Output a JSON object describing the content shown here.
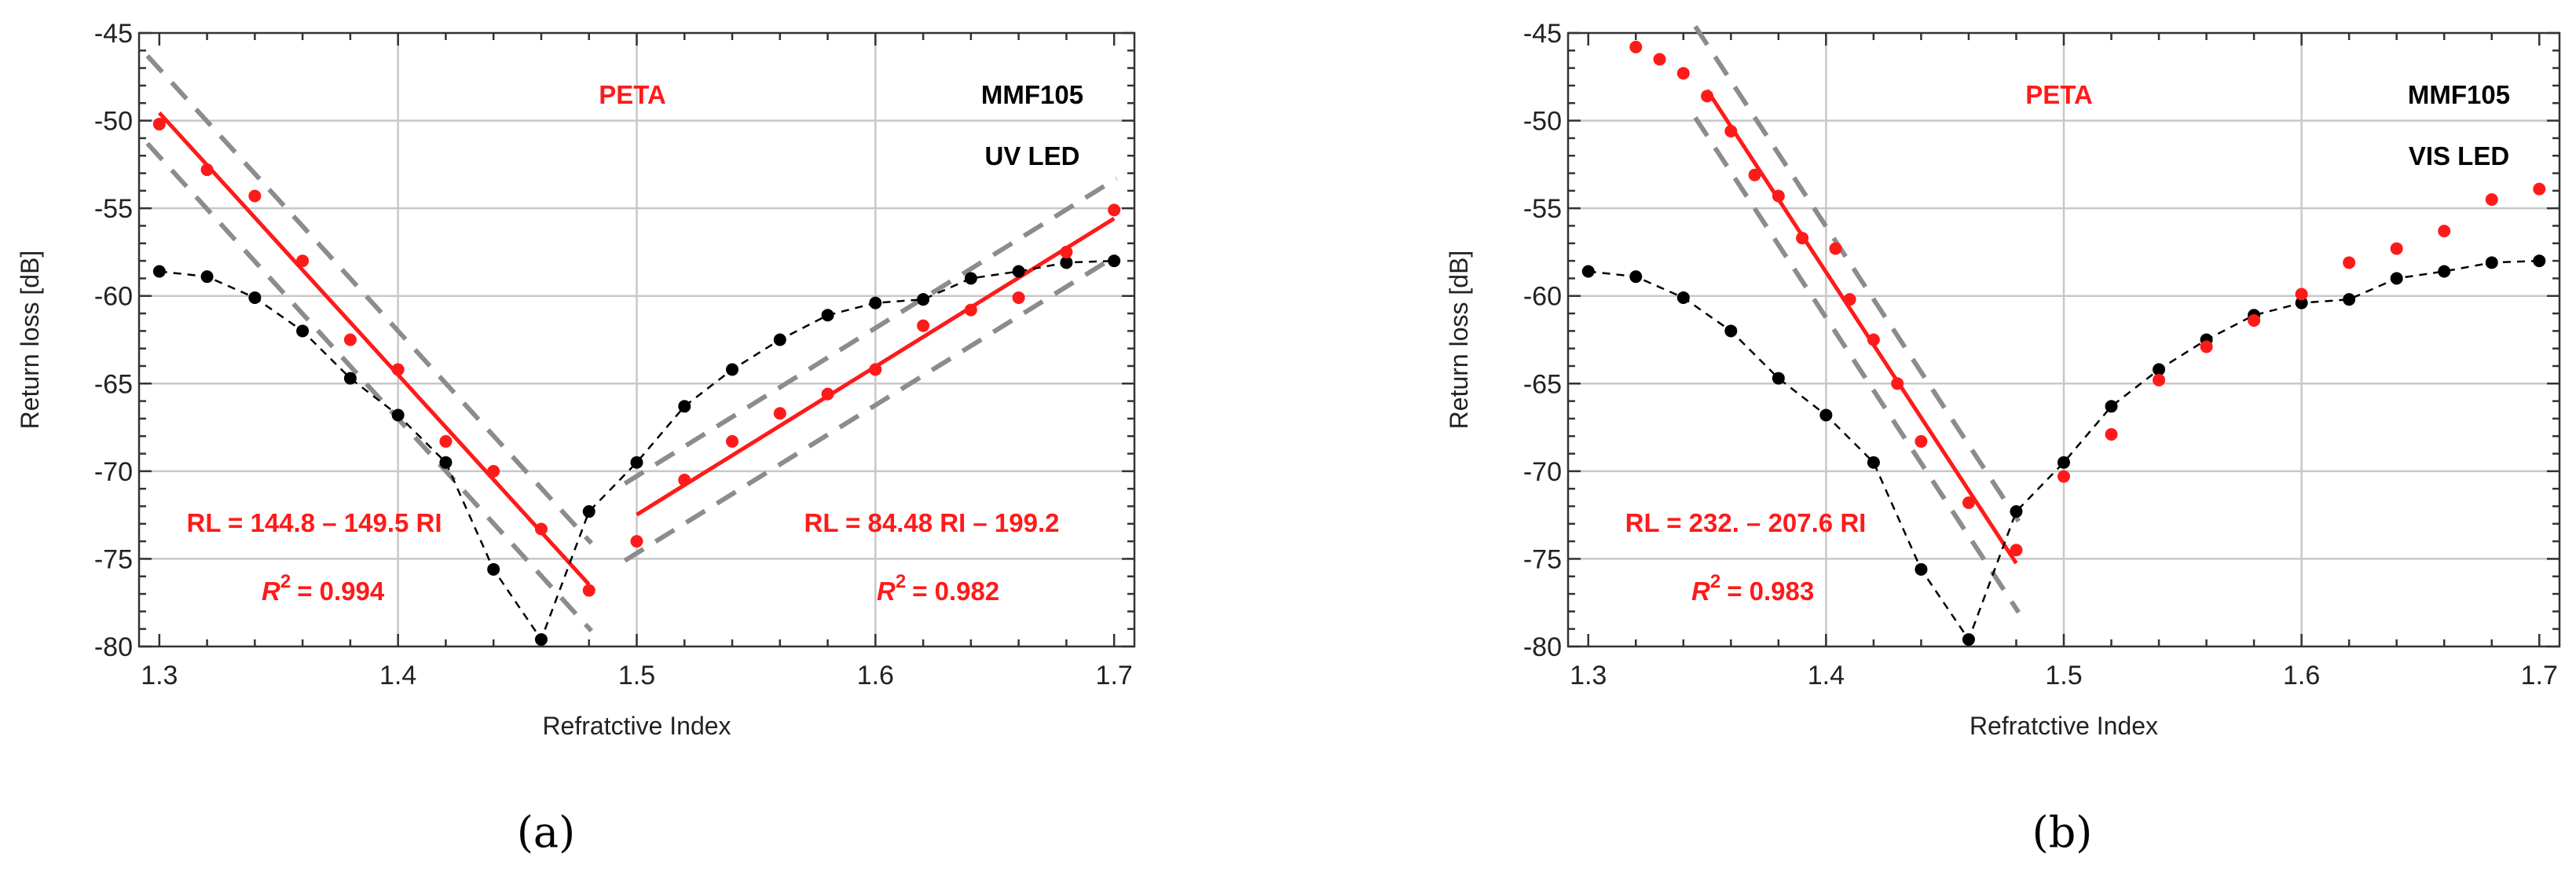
{
  "colors": {
    "red": "#ff1a1a",
    "black": "#000000",
    "band": "#8c8c8c",
    "grid": "#c8c8c8"
  },
  "chart_data": [
    {
      "type": "scatter",
      "caption": "(a)",
      "xlabel": "Refratctive Index",
      "ylabel": "Return loss [dB]",
      "xlim": [
        1.2915,
        1.7085
      ],
      "ylim": [
        -80,
        -45
      ],
      "xticks": [
        "1.3",
        "1.4",
        "1.5",
        "1.6",
        "1.7"
      ],
      "yticks": [
        "-45",
        "-50",
        "-55",
        "-60",
        "-65",
        "-70",
        "-75",
        "-80"
      ],
      "grid": true,
      "annotations": {
        "material": "PETA",
        "fiber": "MMF105",
        "source": "UV LED",
        "fit1": "RL = 144.8 – 149.5 RI",
        "r2_1": "= 0.994",
        "fit2": "RL = 84.48 RI – 199.2",
        "r2_2": "= 0.982",
        "r2_symbol": "R",
        "r2_exp": "2"
      },
      "series": [
        {
          "name": "reference (black, dashed)",
          "x": [
            1.3,
            1.32,
            1.34,
            1.36,
            1.38,
            1.4,
            1.42,
            1.44,
            1.46,
            1.48,
            1.5,
            1.52,
            1.54,
            1.56,
            1.58,
            1.6,
            1.62,
            1.64,
            1.66,
            1.68,
            1.7
          ],
          "y": [
            -58.6,
            -58.9,
            -60.1,
            -62.0,
            -64.7,
            -66.8,
            -69.5,
            -75.6,
            -79.6,
            -72.3,
            -69.5,
            -66.3,
            -64.2,
            -62.5,
            -61.1,
            -60.4,
            -60.2,
            -59.0,
            -58.6,
            -58.1,
            -58.0
          ]
        },
        {
          "name": "PETA (red)",
          "x": [
            1.3,
            1.32,
            1.34,
            1.36,
            1.38,
            1.4,
            1.42,
            1.44,
            1.46,
            1.48,
            1.5,
            1.52,
            1.54,
            1.56,
            1.58,
            1.6,
            1.62,
            1.64,
            1.66,
            1.68,
            1.7
          ],
          "y": [
            -50.2,
            -52.8,
            -54.3,
            -58.0,
            -62.5,
            -64.2,
            -68.3,
            -70.0,
            -73.3,
            -76.8,
            -74.0,
            -70.5,
            -68.3,
            -66.7,
            -65.6,
            -64.2,
            -61.7,
            -60.8,
            -60.1,
            -57.5,
            -55.1
          ]
        }
      ],
      "fits": [
        {
          "intercept": 144.8,
          "slope": -149.5,
          "x_range": [
            1.3,
            1.48
          ],
          "band": 2.5
        },
        {
          "intercept": -199.2,
          "slope": 84.48,
          "x_range": [
            1.5,
            1.7
          ],
          "band": 2.2
        }
      ]
    },
    {
      "type": "scatter",
      "caption": "(b)",
      "xlabel": "Refratctive Index",
      "ylabel": "Return loss [dB]",
      "xlim": [
        1.2915,
        1.7085
      ],
      "ylim": [
        -80,
        -45
      ],
      "xticks": [
        "1.3",
        "1.4",
        "1.5",
        "1.6",
        "1.7"
      ],
      "yticks": [
        "-45",
        "-50",
        "-55",
        "-60",
        "-65",
        "-70",
        "-75",
        "-80"
      ],
      "grid": true,
      "annotations": {
        "material": "PETA",
        "fiber": "MMF105",
        "source": "VIS LED",
        "fit1": "RL = 232. – 207.6 RI",
        "r2_1": "= 0.983",
        "r2_symbol": "R",
        "r2_exp": "2"
      },
      "series": [
        {
          "name": "reference (black, dashed)",
          "x": [
            1.3,
            1.32,
            1.34,
            1.36,
            1.38,
            1.4,
            1.42,
            1.44,
            1.46,
            1.48,
            1.5,
            1.52,
            1.54,
            1.56,
            1.58,
            1.6,
            1.62,
            1.64,
            1.66,
            1.68,
            1.7
          ],
          "y": [
            -58.6,
            -58.9,
            -60.1,
            -62.0,
            -64.7,
            -66.8,
            -69.5,
            -75.6,
            -79.6,
            -72.3,
            -69.5,
            -66.3,
            -64.2,
            -62.5,
            -61.1,
            -60.4,
            -60.2,
            -59.0,
            -58.6,
            -58.1,
            -58.0
          ]
        },
        {
          "name": "PETA (red)",
          "x": [
            1.32,
            1.33,
            1.34,
            1.35,
            1.36,
            1.37,
            1.38,
            1.39,
            1.404,
            1.41,
            1.42,
            1.43,
            1.44,
            1.46,
            1.48,
            1.5,
            1.52,
            1.54,
            1.56,
            1.58,
            1.6,
            1.62,
            1.64,
            1.66,
            1.68,
            1.7
          ],
          "y": [
            -45.8,
            -46.5,
            -47.3,
            -48.6,
            -50.6,
            -53.1,
            -54.3,
            -56.7,
            -57.3,
            -60.2,
            -62.5,
            -65.0,
            -68.3,
            -71.8,
            -74.5,
            -70.3,
            -67.9,
            -64.8,
            -62.9,
            -61.4,
            -59.9,
            -58.1,
            -57.3,
            -56.3,
            -54.5,
            -53.9
          ]
        }
      ],
      "fits": [
        {
          "intercept": 232.0,
          "slope": -207.6,
          "x_range": [
            1.35,
            1.48
          ],
          "band": 2.6
        }
      ]
    }
  ]
}
